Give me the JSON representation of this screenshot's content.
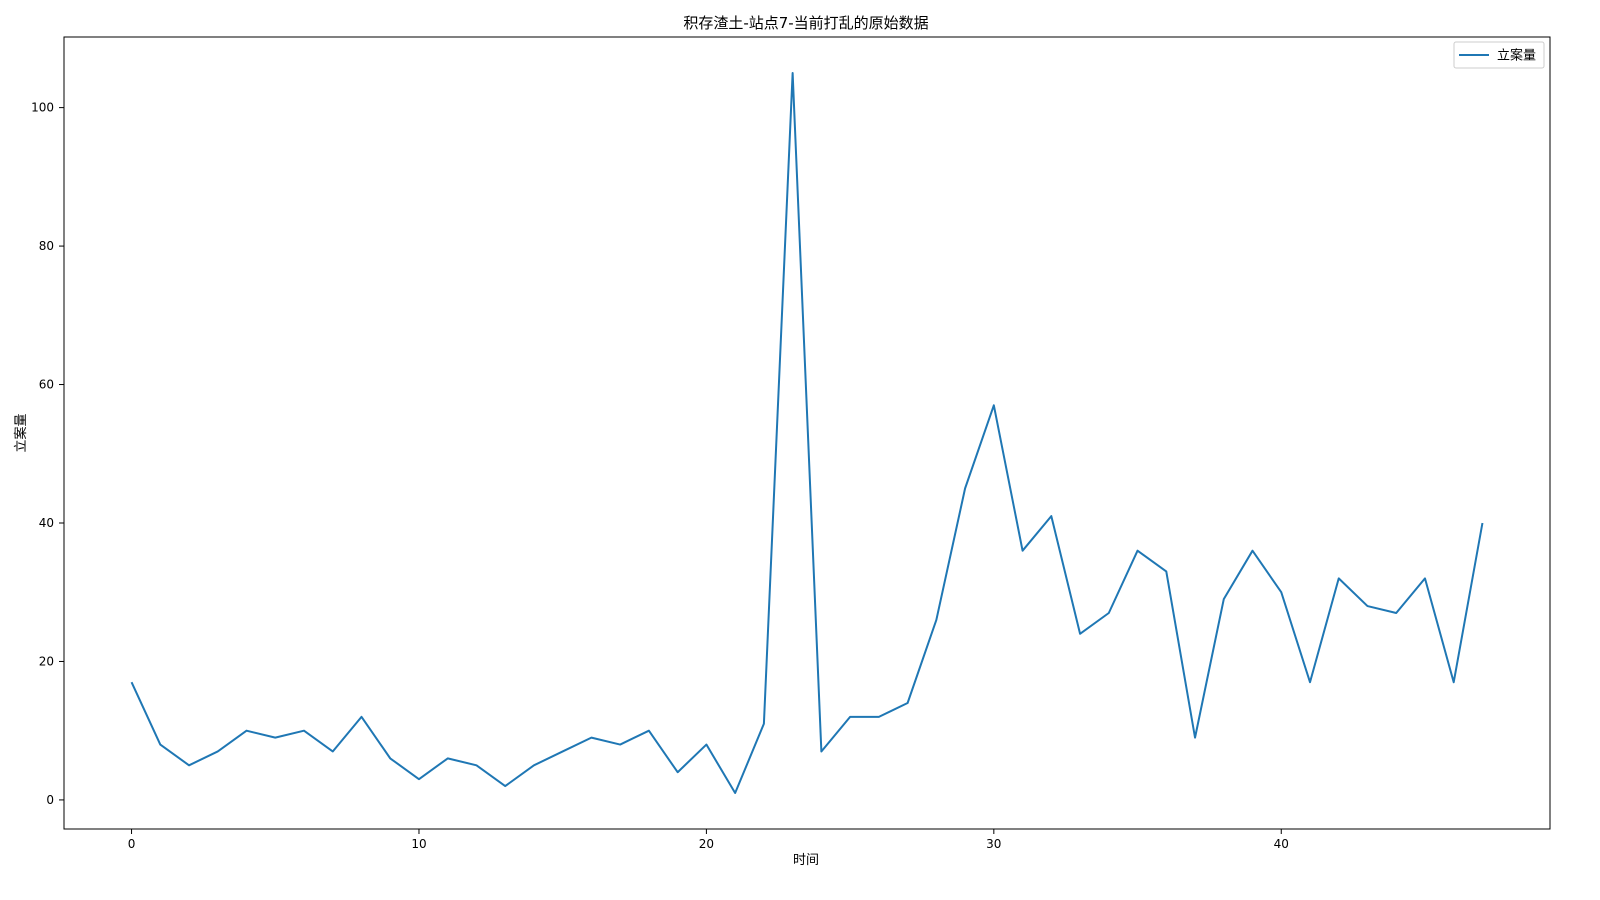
{
  "chart_data": {
    "type": "line",
    "title": "积存渣土-站点7-当前打乱的原始数据",
    "xlabel": "时间",
    "ylabel": "立案量",
    "xlim": [
      -2.35,
      49.35
    ],
    "ylim": [
      -4.2,
      110.2
    ],
    "xticks": [
      0,
      10,
      20,
      30,
      40
    ],
    "yticks": [
      0,
      20,
      40,
      60,
      80,
      100
    ],
    "grid": false,
    "legend_position": "top-right",
    "series": [
      {
        "name": "立案量",
        "color": "#1f77b4",
        "x": [
          0,
          1,
          2,
          3,
          4,
          5,
          6,
          7,
          8,
          9,
          10,
          11,
          12,
          13,
          14,
          15,
          16,
          17,
          18,
          19,
          20,
          21,
          22,
          23,
          24,
          25,
          26,
          27,
          28,
          29,
          30,
          31,
          32,
          33,
          34,
          35,
          36,
          37,
          38,
          39,
          40,
          41,
          42,
          43,
          44,
          45,
          46,
          47
        ],
        "y": [
          17,
          8,
          5,
          7,
          10,
          9,
          10,
          7,
          12,
          6,
          3,
          6,
          5,
          2,
          5,
          7,
          9,
          8,
          10,
          4,
          8,
          1,
          11,
          105,
          7,
          12,
          12,
          14,
          26,
          45,
          57,
          36,
          41,
          24,
          27,
          36,
          33,
          9,
          29,
          36,
          30,
          17,
          32,
          28,
          27,
          32,
          17,
          40
        ]
      }
    ]
  }
}
